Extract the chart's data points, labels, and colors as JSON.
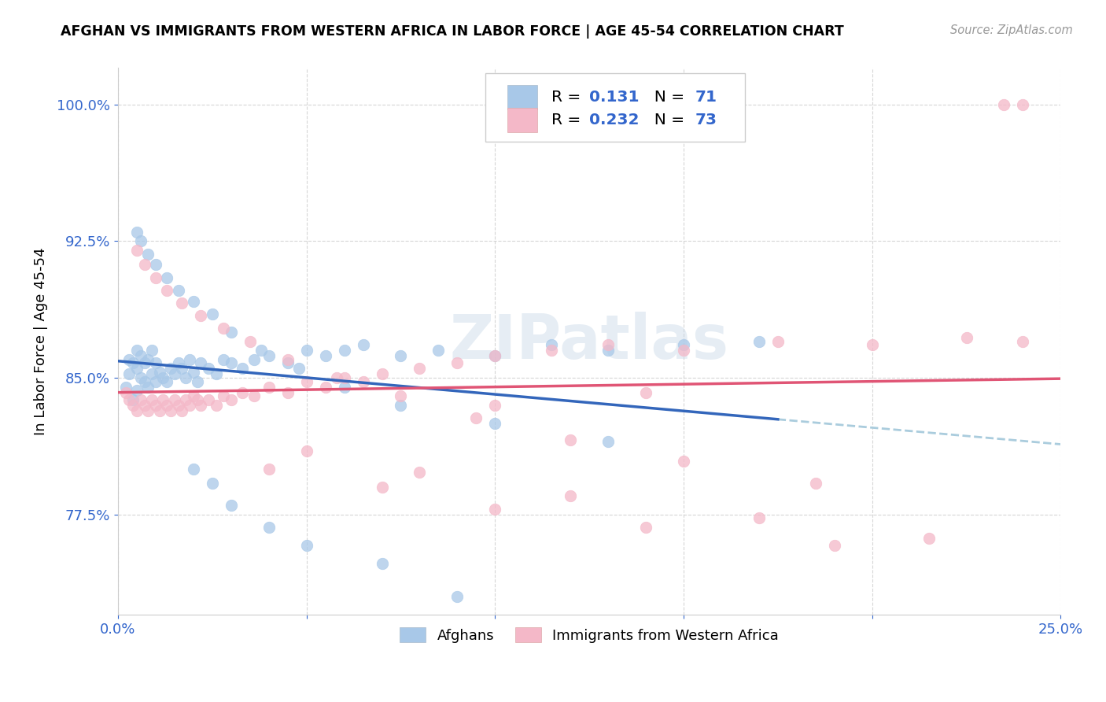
{
  "title": "AFGHAN VS IMMIGRANTS FROM WESTERN AFRICA IN LABOR FORCE | AGE 45-54 CORRELATION CHART",
  "source": "Source: ZipAtlas.com",
  "ylabel": "In Labor Force | Age 45-54",
  "xlim": [
    0.0,
    0.25
  ],
  "ylim": [
    0.72,
    1.02
  ],
  "xticks": [
    0.0,
    0.05,
    0.1,
    0.15,
    0.2,
    0.25
  ],
  "xticklabels": [
    "0.0%",
    "",
    "",
    "",
    "",
    "25.0%"
  ],
  "yticks": [
    0.775,
    0.85,
    0.925,
    1.0
  ],
  "yticklabels": [
    "77.5%",
    "85.0%",
    "92.5%",
    "100.0%"
  ],
  "blue_color": "#a8c8e8",
  "pink_color": "#f4b8c8",
  "blue_line_color": "#3366bb",
  "pink_line_color": "#e05575",
  "dashed_line_color": "#aaccdd",
  "text_blue": "#3366cc",
  "watermark": "ZIPatlas",
  "legend_R1": "0.131",
  "legend_N1": "71",
  "legend_R2": "0.232",
  "legend_N2": "73",
  "afghans_label": "Afghans",
  "immigrants_label": "Immigrants from Western Africa",
  "blue_x": [
    0.002,
    0.003,
    0.003,
    0.004,
    0.004,
    0.005,
    0.005,
    0.005,
    0.006,
    0.006,
    0.007,
    0.007,
    0.008,
    0.008,
    0.009,
    0.009,
    0.01,
    0.01,
    0.011,
    0.012,
    0.013,
    0.014,
    0.015,
    0.016,
    0.017,
    0.018,
    0.019,
    0.02,
    0.021,
    0.022,
    0.024,
    0.026,
    0.028,
    0.03,
    0.033,
    0.036,
    0.04,
    0.045,
    0.05,
    0.055,
    0.06,
    0.065,
    0.075,
    0.085,
    0.1,
    0.115,
    0.13,
    0.15,
    0.17,
    0.005,
    0.006,
    0.008,
    0.01,
    0.013,
    0.016,
    0.02,
    0.025,
    0.03,
    0.038,
    0.048,
    0.06,
    0.075,
    0.1,
    0.13,
    0.02,
    0.025,
    0.03,
    0.04,
    0.05,
    0.07,
    0.09
  ],
  "blue_y": [
    0.845,
    0.852,
    0.86,
    0.838,
    0.858,
    0.843,
    0.855,
    0.865,
    0.85,
    0.862,
    0.848,
    0.858,
    0.845,
    0.86,
    0.852,
    0.865,
    0.848,
    0.858,
    0.853,
    0.85,
    0.848,
    0.855,
    0.852,
    0.858,
    0.855,
    0.85,
    0.86,
    0.853,
    0.848,
    0.858,
    0.855,
    0.852,
    0.86,
    0.858,
    0.855,
    0.86,
    0.862,
    0.858,
    0.865,
    0.862,
    0.865,
    0.868,
    0.862,
    0.865,
    0.862,
    0.868,
    0.865,
    0.868,
    0.87,
    0.93,
    0.925,
    0.918,
    0.912,
    0.905,
    0.898,
    0.892,
    0.885,
    0.875,
    0.865,
    0.855,
    0.845,
    0.835,
    0.825,
    0.815,
    0.8,
    0.792,
    0.78,
    0.768,
    0.758,
    0.748,
    0.73
  ],
  "pink_x": [
    0.002,
    0.003,
    0.004,
    0.005,
    0.006,
    0.007,
    0.008,
    0.009,
    0.01,
    0.011,
    0.012,
    0.013,
    0.014,
    0.015,
    0.016,
    0.017,
    0.018,
    0.019,
    0.02,
    0.021,
    0.022,
    0.024,
    0.026,
    0.028,
    0.03,
    0.033,
    0.036,
    0.04,
    0.045,
    0.05,
    0.055,
    0.06,
    0.065,
    0.07,
    0.08,
    0.09,
    0.1,
    0.115,
    0.13,
    0.15,
    0.175,
    0.2,
    0.225,
    0.24,
    0.005,
    0.007,
    0.01,
    0.013,
    0.017,
    0.022,
    0.028,
    0.035,
    0.045,
    0.058,
    0.075,
    0.095,
    0.12,
    0.15,
    0.185,
    0.04,
    0.07,
    0.1,
    0.14,
    0.19,
    0.235,
    0.24,
    0.1,
    0.14,
    0.05,
    0.08,
    0.12,
    0.17,
    0.215
  ],
  "pink_y": [
    0.842,
    0.838,
    0.835,
    0.832,
    0.838,
    0.835,
    0.832,
    0.838,
    0.835,
    0.832,
    0.838,
    0.835,
    0.832,
    0.838,
    0.835,
    0.832,
    0.838,
    0.835,
    0.84,
    0.838,
    0.835,
    0.838,
    0.835,
    0.84,
    0.838,
    0.842,
    0.84,
    0.845,
    0.842,
    0.848,
    0.845,
    0.85,
    0.848,
    0.852,
    0.855,
    0.858,
    0.862,
    0.865,
    0.868,
    0.865,
    0.87,
    0.868,
    0.872,
    0.87,
    0.92,
    0.912,
    0.905,
    0.898,
    0.891,
    0.884,
    0.877,
    0.87,
    0.86,
    0.85,
    0.84,
    0.828,
    0.816,
    0.804,
    0.792,
    0.8,
    0.79,
    0.778,
    0.768,
    0.758,
    1.0,
    1.0,
    0.835,
    0.842,
    0.81,
    0.798,
    0.785,
    0.773,
    0.762
  ]
}
